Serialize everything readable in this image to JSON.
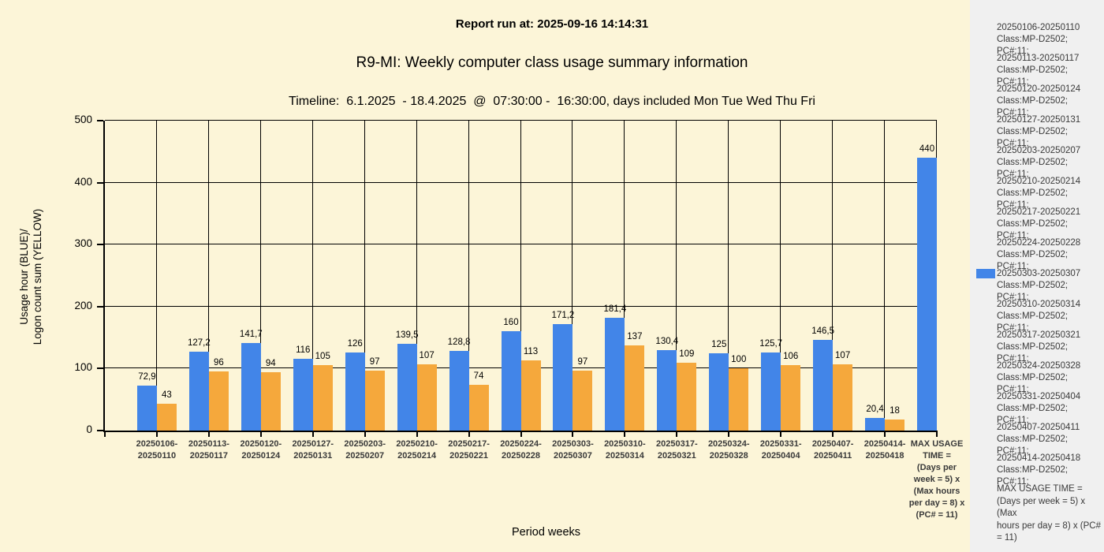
{
  "header": {
    "report_run": "Report run at: 2025-09-16 14:14:31",
    "title": "R9-MI: Weekly computer class usage summary information",
    "timeline": "Timeline:  6.1.2025  - 18.4.2025  @  07:30:00 -  16:30:00, days included Mon Tue Wed Thu Fri"
  },
  "chart_data": {
    "type": "bar",
    "title": "R9-MI: Weekly computer class usage summary information",
    "xlabel": "Period weeks",
    "ylabel": "Usage hour (BLUE)/ Logon count sum (YELLOW)",
    "ylabel_lines": [
      "Usage hour (BLUE)/",
      "Logon count sum (YELLOW)"
    ],
    "ylim": [
      0,
      500
    ],
    "yticks": [
      0,
      100,
      200,
      300,
      400,
      500
    ],
    "grid": true,
    "legend_position": "right",
    "categories": [
      "20250106-20250110",
      "20250113-20250117",
      "20250120-20250124",
      "20250127-20250131",
      "20250203-20250207",
      "20250210-20250214",
      "20250217-20250221",
      "20250224-20250228",
      "20250303-20250307",
      "20250310-20250314",
      "20250317-20250321",
      "20250324-20250328",
      "20250331-20250404",
      "20250407-20250411",
      "20250414-20250418",
      "MAX USAGE TIME = (Days per week = 5) x (Max hours per day = 8) x (PC# = 11)"
    ],
    "x_tick_lines": [
      [
        "20250106-",
        "20250110"
      ],
      [
        "20250113-",
        "20250117"
      ],
      [
        "20250120-",
        "20250124"
      ],
      [
        "20250127-",
        "20250131"
      ],
      [
        "20250203-",
        "20250207"
      ],
      [
        "20250210-",
        "20250214"
      ],
      [
        "20250217-",
        "20250221"
      ],
      [
        "20250224-",
        "20250228"
      ],
      [
        "20250303-",
        "20250307"
      ],
      [
        "20250310-",
        "20250314"
      ],
      [
        "20250317-",
        "20250321"
      ],
      [
        "20250324-",
        "20250328"
      ],
      [
        "20250331-",
        "20250404"
      ],
      [
        "20250407-",
        "20250411"
      ],
      [
        "20250414-",
        "20250418"
      ],
      [
        "MAX USAGE",
        "TIME =",
        "(Days per",
        "week = 5) x",
        "(Max hours",
        "per day = 8) x",
        "(PC# = 11)"
      ]
    ],
    "series": [
      {
        "name": "Usage hour",
        "color": "#4285E8",
        "values": [
          72.9,
          127.2,
          141.7,
          116,
          126,
          139.5,
          128.8,
          160,
          171.2,
          181.4,
          130.4,
          125,
          125.7,
          146.5,
          20.4,
          440
        ]
      },
      {
        "name": "Logon count sum",
        "color": "#F5A83C",
        "values": [
          43,
          96,
          94,
          105,
          97,
          107,
          74,
          113,
          97,
          137,
          109,
          100,
          106,
          107,
          18,
          null
        ]
      }
    ],
    "decimal_separator": ","
  },
  "legend": {
    "items": [
      {
        "range": "20250106-20250110",
        "details": "Class:MP-D2502; PC#:11;",
        "swatch": false
      },
      {
        "range": "20250113-20250117",
        "details": "Class:MP-D2502; PC#:11;",
        "swatch": false
      },
      {
        "range": "20250120-20250124",
        "details": "Class:MP-D2502; PC#:11;",
        "swatch": false
      },
      {
        "range": "20250127-20250131",
        "details": "Class:MP-D2502; PC#:11;",
        "swatch": false
      },
      {
        "range": "20250203-20250207",
        "details": "Class:MP-D2502; PC#:11;",
        "swatch": false
      },
      {
        "range": "20250210-20250214",
        "details": "Class:MP-D2502; PC#:11;",
        "swatch": false
      },
      {
        "range": "20250217-20250221",
        "details": "Class:MP-D2502; PC#:11;",
        "swatch": false
      },
      {
        "range": "20250224-20250228",
        "details": "Class:MP-D2502; PC#:11;",
        "swatch": false
      },
      {
        "range": "20250303-20250307",
        "details": "Class:MP-D2502; PC#:11;",
        "swatch": true
      },
      {
        "range": "20250310-20250314",
        "details": "Class:MP-D2502; PC#:11;",
        "swatch": false
      },
      {
        "range": "20250317-20250321",
        "details": "Class:MP-D2502; PC#:11;",
        "swatch": false
      },
      {
        "range": "20250324-20250328",
        "details": "Class:MP-D2502; PC#:11;",
        "swatch": false
      },
      {
        "range": "20250331-20250404",
        "details": "Class:MP-D2502; PC#:11;",
        "swatch": false
      },
      {
        "range": "20250407-20250411",
        "details": "Class:MP-D2502; PC#:11;",
        "swatch": false
      },
      {
        "range": "20250414-20250418",
        "details": "Class:MP-D2502; PC#:11;",
        "swatch": false
      }
    ],
    "max_usage_note_lines": [
      "MAX USAGE TIME =",
      " (Days per week = 5) x (Max",
      "hours per day = 8) x (PC#",
      "= 11)"
    ]
  },
  "colors": {
    "background": "#FCF5D8",
    "legend_panel": "#F0F0F0",
    "usage_hour_bar": "#4285E8",
    "logon_count_bar": "#F5A83C",
    "grid": "#000000"
  }
}
